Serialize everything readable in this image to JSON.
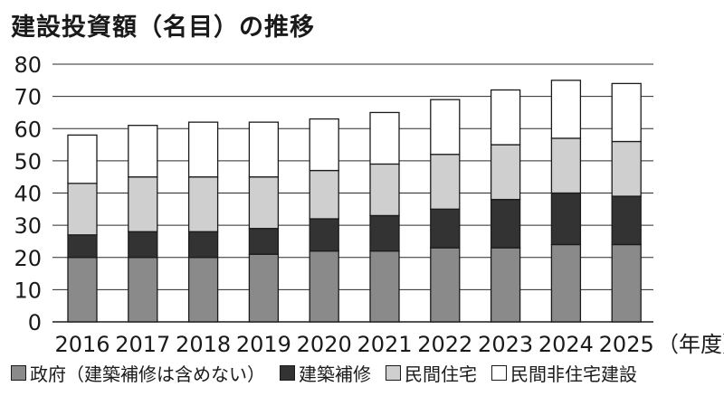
{
  "title": "建設投資額（名目）の推移",
  "chart_data": {
    "type": "bar",
    "stacked": true,
    "categories": [
      "2016",
      "2017",
      "2018",
      "2019",
      "2020",
      "2021",
      "2022",
      "2023",
      "2024",
      "2025"
    ],
    "x_unit_label": "（年度）",
    "ylim": [
      0,
      80
    ],
    "yticks": [
      0,
      10,
      20,
      30,
      40,
      50,
      60,
      70,
      80
    ],
    "grid": true,
    "legend_position": "bottom",
    "series": [
      {
        "name": "政府（建築補修は含めない）",
        "color": "#8a8a8a",
        "values": [
          20,
          20,
          20,
          21,
          22,
          22,
          23,
          23,
          24,
          24
        ]
      },
      {
        "name": "建築補修",
        "color": "#333333",
        "values": [
          7,
          8,
          8,
          8,
          10,
          11,
          12,
          15,
          16,
          15
        ]
      },
      {
        "name": "民間住宅",
        "color": "#cfcfcf",
        "values": [
          16,
          17,
          17,
          16,
          15,
          16,
          17,
          17,
          17,
          17
        ]
      },
      {
        "name": "民間非住宅建設",
        "color": "#ffffff",
        "values": [
          15,
          16,
          17,
          17,
          16,
          16,
          17,
          17,
          18,
          18
        ]
      }
    ]
  }
}
